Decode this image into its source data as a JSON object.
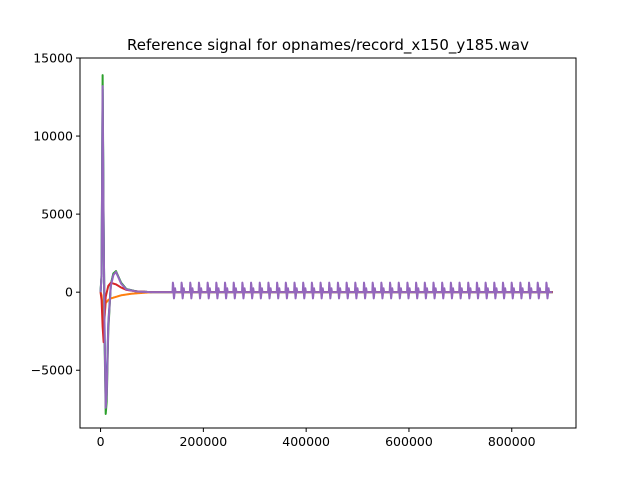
{
  "chart_data": {
    "type": "line",
    "title": "Reference signal for opnames/record_x150_y185.wav",
    "xlabel": "",
    "ylabel": "",
    "xlim": [
      -40000,
      925000
    ],
    "ylim": [
      -8700,
      15000
    ],
    "x_ticks": [
      0,
      200000,
      400000,
      600000,
      800000
    ],
    "x_tick_labels": [
      "0",
      "200000",
      "400000",
      "600000",
      "800000"
    ],
    "y_ticks": [
      -5000,
      0,
      5000,
      10000,
      15000
    ],
    "y_tick_labels": [
      "−5000",
      "0",
      "5000",
      "10000",
      "15000"
    ],
    "grid": false,
    "legend": "none",
    "colors": [
      "#1f77b4",
      "#ff7f0e",
      "#2ca02c",
      "#d62728",
      "#9467bd"
    ],
    "series": [
      {
        "color": "#1f77b4",
        "x": [
          0,
          2000,
          4000,
          6000,
          8000,
          10000,
          12000,
          15000,
          20000,
          25000,
          30000,
          40000,
          50000,
          70000,
          100000,
          140000,
          880000
        ],
        "y": [
          0,
          1000,
          13000,
          4000,
          -3000,
          -6500,
          -6000,
          -2000,
          500,
          1200,
          1300,
          600,
          200,
          50,
          0,
          0,
          0
        ]
      },
      {
        "color": "#ff7f0e",
        "x": [
          0,
          2000,
          4000,
          6000,
          8000,
          10000,
          15000,
          20000,
          30000,
          40000,
          60000,
          100000,
          880000
        ],
        "y": [
          0,
          -200,
          -1000,
          -2000,
          -1500,
          -700,
          -500,
          -400,
          -300,
          -200,
          -100,
          0,
          0
        ]
      },
      {
        "color": "#2ca02c",
        "x": [
          0,
          2000,
          4000,
          6000,
          8000,
          10000,
          12000,
          15000,
          20000,
          25000,
          30000,
          40000,
          50000,
          70000,
          100000,
          140000,
          880000
        ],
        "y": [
          0,
          1200,
          13900,
          4500,
          -3500,
          -7800,
          -7000,
          -2500,
          500,
          1200,
          1350,
          600,
          200,
          50,
          0,
          0,
          0
        ]
      },
      {
        "color": "#d62728",
        "x": [
          0,
          2000,
          4000,
          6000,
          8000,
          10000,
          15000,
          20000,
          30000,
          40000,
          50000,
          70000,
          100000,
          880000
        ],
        "y": [
          0,
          -500,
          -2200,
          -3200,
          -1500,
          -300,
          400,
          600,
          500,
          300,
          150,
          50,
          0,
          0
        ]
      },
      {
        "color": "#9467bd",
        "x": [
          0,
          2000,
          4000,
          6000,
          8000,
          10000,
          12000,
          15000,
          20000,
          25000,
          30000,
          40000,
          50000,
          70000,
          100000,
          140000,
          880000
        ],
        "y": [
          0,
          1000,
          13200,
          4000,
          -3000,
          -7400,
          -6500,
          -2200,
          400,
          1100,
          1300,
          550,
          180,
          40,
          0,
          0,
          0
        ],
        "oscillation": {
          "start": 140000,
          "end": 880000,
          "period": 16900,
          "amplitude": 800
        }
      }
    ]
  }
}
